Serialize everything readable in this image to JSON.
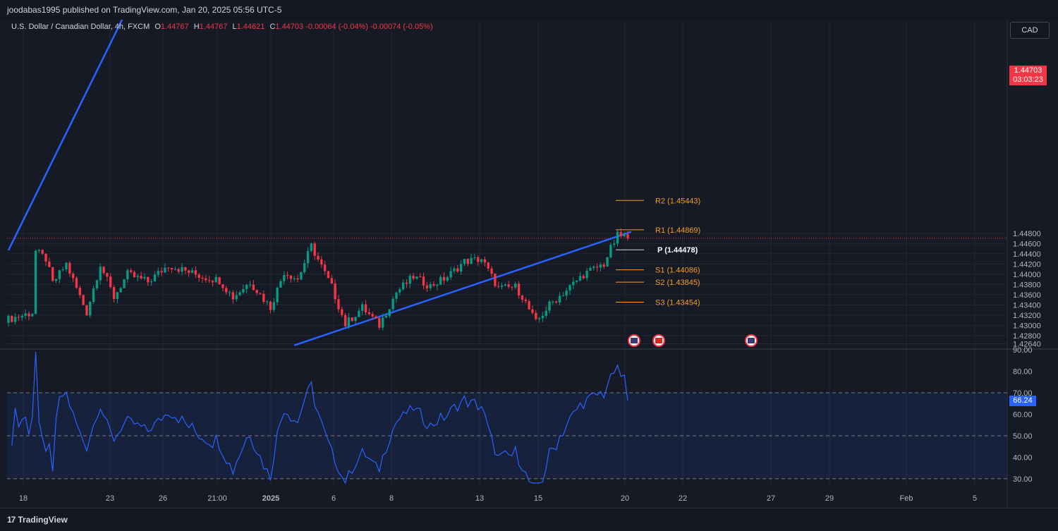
{
  "header": {
    "publisher": "joodabas1995 published on TradingView.com, Jan 20, 2025 05:56 UTC-5",
    "currency_button": "CAD",
    "logo_text": "TradingView",
    "logo_mark": "17"
  },
  "legend": {
    "symbol": "U.S. Dollar / Canadian Dollar, 4h, FXCM",
    "o_label": "O",
    "o_value": "1.44767",
    "h_label": "H",
    "h_value": "1.44767",
    "l_label": "L",
    "l_value": "1.44621",
    "c_label": "C",
    "c_value": "1.44703",
    "change": "-0.00064 (-0.04%)",
    "change2": "-0.00074 (-0.05%)"
  },
  "price_badge": {
    "price": "1.44703",
    "countdown": "03:03:23"
  },
  "rsi_badge": "66.24",
  "chart_data": {
    "type": "candlestick",
    "symbol": "USDCAD",
    "interval": "4h",
    "ylim": [
      1.4255,
      1.4895
    ],
    "price_ticks": [
      "1.44800",
      "1.44600",
      "1.44400",
      "1.44200",
      "1.44000",
      "1.43800",
      "1.43600",
      "1.43400",
      "1.43200",
      "1.43000",
      "1.42800",
      "1.42640"
    ],
    "x_labels": [
      "18",
      "23",
      "26",
      "21:00",
      "2025",
      "6",
      "8",
      "13",
      "15",
      "20",
      "22",
      "27",
      "29",
      "Feb",
      "5"
    ],
    "current_price": 1.44703,
    "up_color": "#089981",
    "down_color": "#f23645",
    "candles_count": 150,
    "trendlines": [
      {
        "from": [
          0,
          1.4447
        ],
        "to": [
          36,
          1.4933
        ]
      },
      {
        "from": [
          84,
          1.4261
        ],
        "to": [
          183,
          1.4483
        ]
      }
    ],
    "pivots": [
      {
        "label": "R2 (1.45443)",
        "value": 1.45443
      },
      {
        "label": "R1 (1.44869)",
        "value": 1.44869
      },
      {
        "label": "P (1.44478)",
        "value": 1.44478
      },
      {
        "label": "S1 (1.44086)",
        "value": 1.44086
      },
      {
        "label": "S2 (1.43845)",
        "value": 1.43845
      },
      {
        "label": "S3 (1.43454)",
        "value": 1.43454
      }
    ],
    "rsi": {
      "ylim": [
        27,
        90
      ],
      "ticks": [
        "90.00",
        "80.00",
        "70.00",
        "60.00",
        "50.00",
        "40.00",
        "30.00"
      ],
      "overbought": 70,
      "mid": 50,
      "oversold": 30,
      "last": 66.24,
      "color": "#2962ff"
    }
  }
}
